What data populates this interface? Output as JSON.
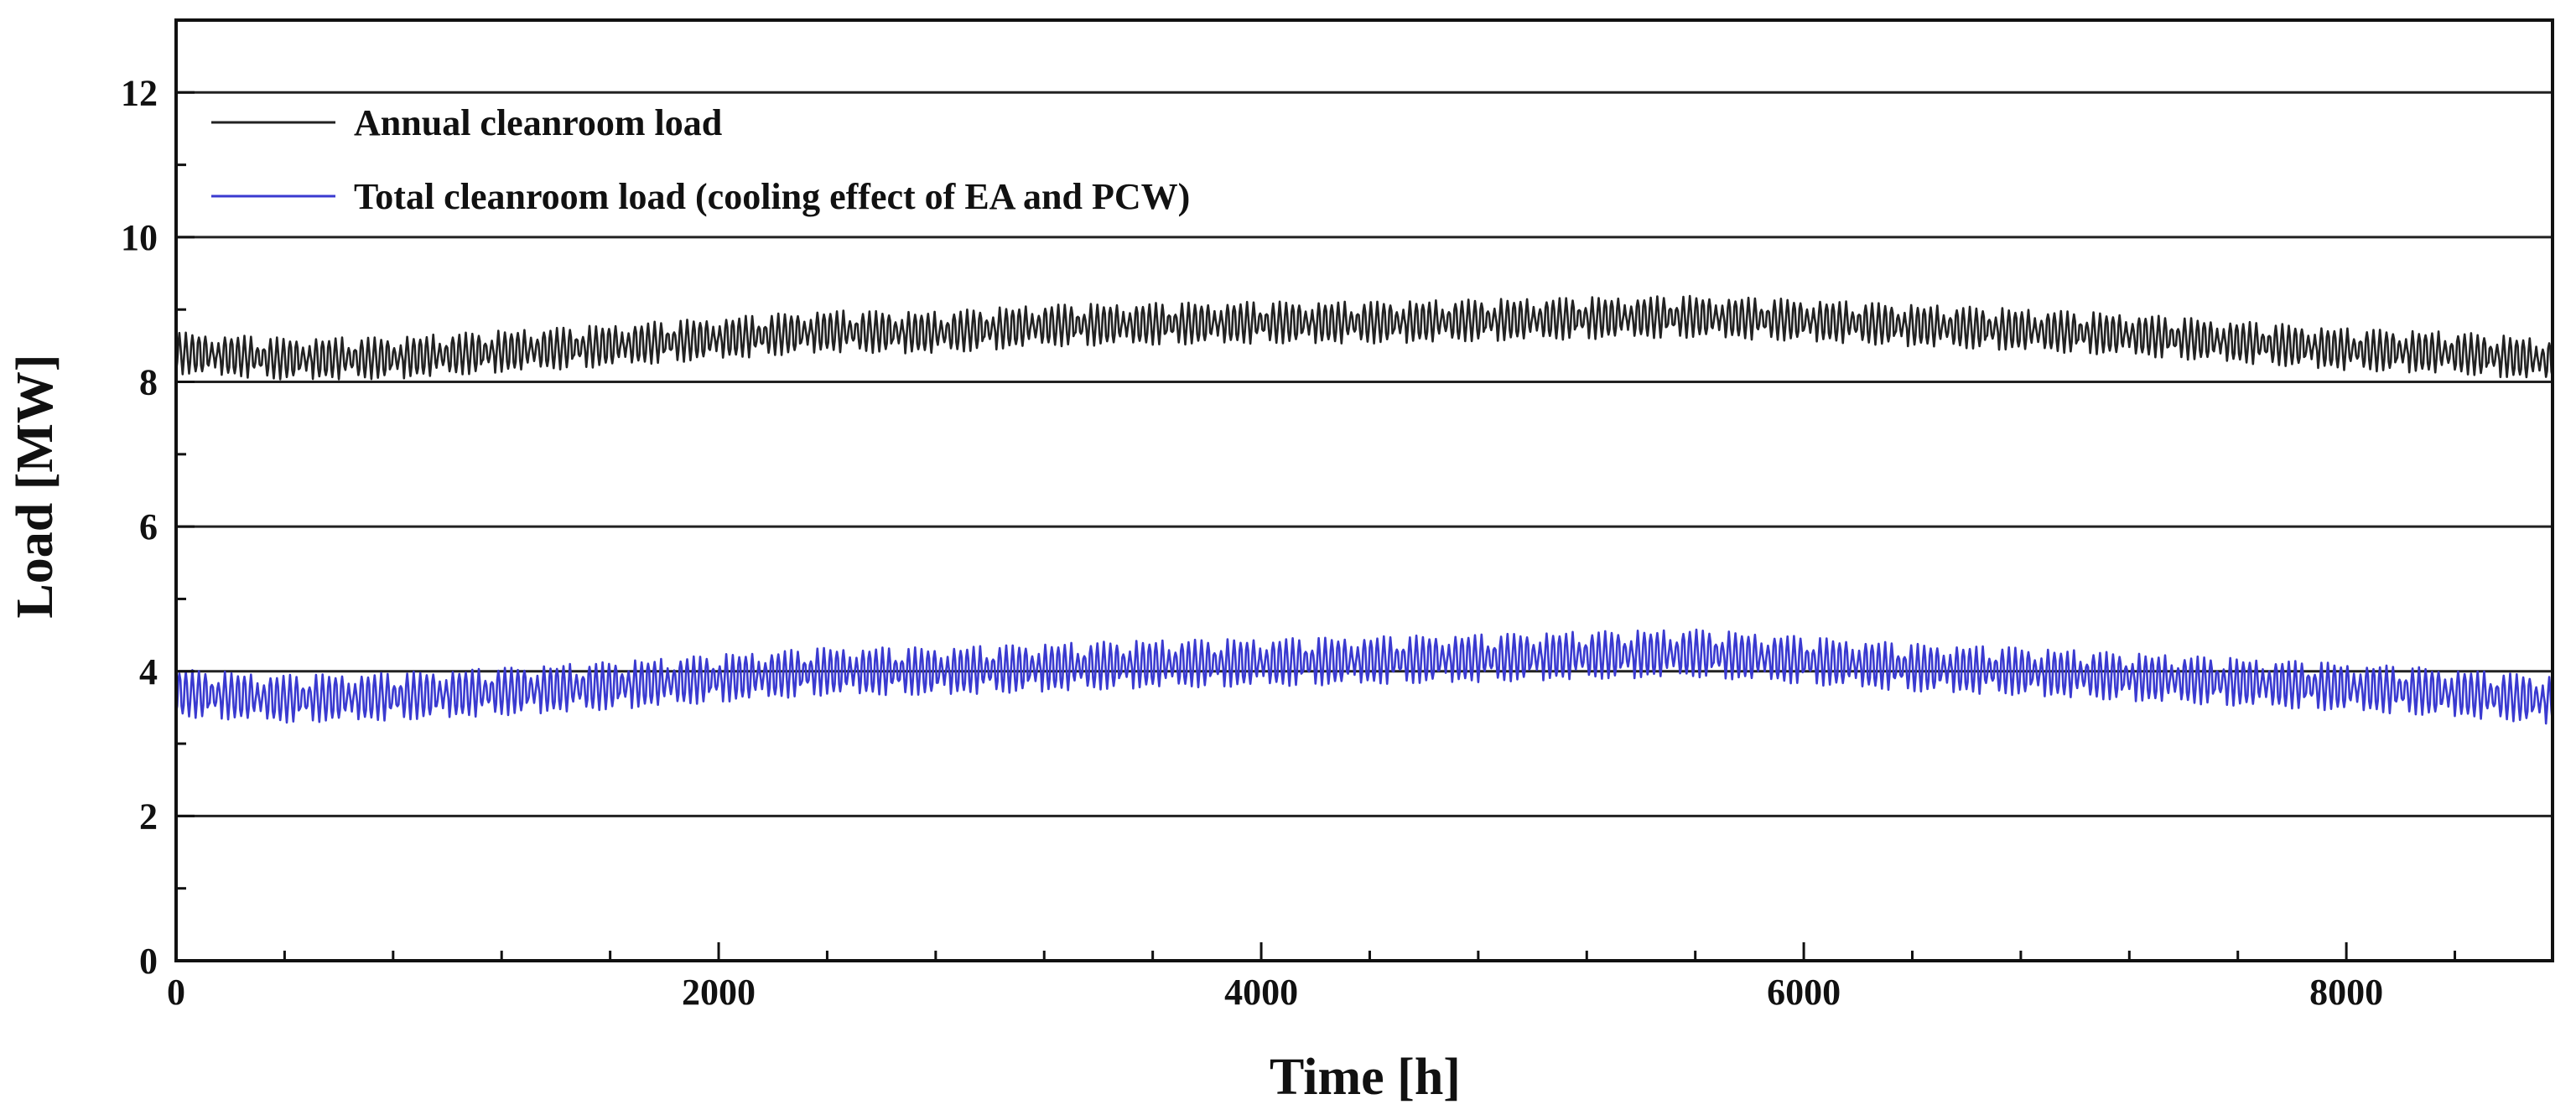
{
  "chart_data": {
    "type": "line",
    "title": "",
    "xlabel": "Time [h]",
    "ylabel": "Load [MW]",
    "xlim": [
      0,
      8760
    ],
    "ylim": [
      0,
      13
    ],
    "x_ticks": [
      0,
      2000,
      4000,
      6000,
      8000
    ],
    "x_tick_labels": [
      "0",
      "2000",
      "4000",
      "6000",
      "8000"
    ],
    "x_minor_step": 400,
    "y_ticks": [
      0,
      2,
      4,
      6,
      8,
      10,
      12
    ],
    "y_tick_labels": [
      "0",
      "2",
      "4",
      "6",
      "8",
      "10",
      "12"
    ],
    "y_minor_step": 1,
    "grid": "horizontal at major y ticks",
    "legend_position": "top-left",
    "series": [
      {
        "name": "Annual cleanroom load",
        "color": "#222222",
        "x": [
          0,
          400,
          800,
          1200,
          1600,
          2000,
          2400,
          2800,
          3200,
          3600,
          4000,
          4400,
          4800,
          5200,
          5600,
          6000,
          6400,
          6800,
          7200,
          7600,
          8000,
          8400,
          8760
        ],
        "values": [
          8.4,
          8.32,
          8.33,
          8.42,
          8.5,
          8.6,
          8.7,
          8.68,
          8.78,
          8.8,
          8.82,
          8.82,
          8.85,
          8.88,
          8.9,
          8.85,
          8.78,
          8.72,
          8.65,
          8.55,
          8.45,
          8.4,
          8.3
        ],
        "daily_swing": 0.26
      },
      {
        "name": "Total cleanroom load (cooling effect of EA and PCW)",
        "color": "#3a3ad0",
        "x": [
          0,
          400,
          800,
          1200,
          1600,
          2000,
          2400,
          2800,
          3200,
          3600,
          4000,
          4400,
          4800,
          5200,
          5600,
          6000,
          6400,
          6800,
          7200,
          7600,
          8000,
          8400,
          8760
        ],
        "values": [
          3.7,
          3.62,
          3.65,
          3.72,
          3.8,
          3.9,
          4.0,
          4.0,
          4.05,
          4.1,
          4.12,
          4.15,
          4.18,
          4.22,
          4.25,
          4.15,
          4.05,
          4.0,
          3.92,
          3.85,
          3.78,
          3.7,
          3.6
        ],
        "daily_swing": 0.3
      }
    ]
  },
  "colors": {
    "axis": "#111111",
    "grid": "#222222",
    "background": "#ffffff"
  }
}
